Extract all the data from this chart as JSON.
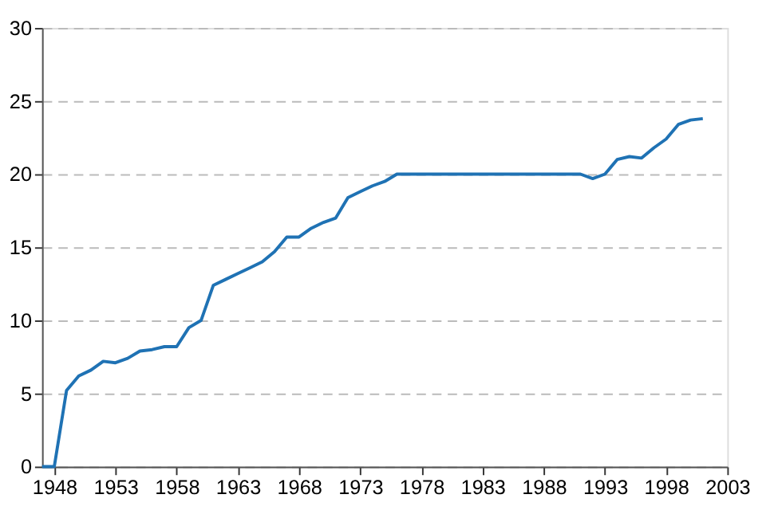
{
  "chart_data": {
    "type": "line",
    "x": [
      1947,
      1948,
      1949,
      1950,
      1951,
      1952,
      1953,
      1954,
      1955,
      1956,
      1957,
      1958,
      1959,
      1960,
      1961,
      1962,
      1963,
      1964,
      1965,
      1966,
      1967,
      1968,
      1969,
      1970,
      1971,
      1972,
      1973,
      1974,
      1975,
      1976,
      1977,
      1978,
      1979,
      1980,
      1981,
      1982,
      1983,
      1984,
      1985,
      1986,
      1987,
      1988,
      1989,
      1990,
      1991,
      1992,
      1993,
      1994,
      1995,
      1996,
      1997,
      1998,
      1999,
      2000,
      2001
    ],
    "series": [
      {
        "color": "#1f72b4",
        "values": [
          0,
          0,
          5.2,
          6.2,
          6.6,
          7.2,
          7.1,
          7.4,
          7.9,
          8.0,
          8.2,
          8.2,
          9.5,
          10.0,
          12.4,
          12.8,
          13.2,
          13.6,
          14.0,
          14.7,
          15.7,
          15.7,
          16.3,
          16.7,
          17.0,
          18.4,
          18.8,
          19.2,
          19.5,
          20.0,
          20.0,
          20.0,
          20.0,
          20.0,
          20.0,
          20.0,
          20.0,
          20.0,
          20.0,
          20.0,
          20.0,
          20.0,
          20.0,
          20.0,
          20.0,
          19.7,
          20.0,
          21.0,
          21.2,
          21.1,
          21.8,
          22.4,
          23.4,
          23.7,
          23.8
        ]
      }
    ],
    "xlim": [
      1947,
      2003
    ],
    "xticks": [
      1948,
      1953,
      1958,
      1963,
      1968,
      1973,
      1978,
      1983,
      1988,
      1993,
      1998,
      2003
    ],
    "ylim": [
      0,
      30
    ],
    "yticks": [
      0,
      5,
      10,
      15,
      20,
      25,
      30
    ],
    "grid": "y",
    "line_style": "solid",
    "marker": "none"
  }
}
